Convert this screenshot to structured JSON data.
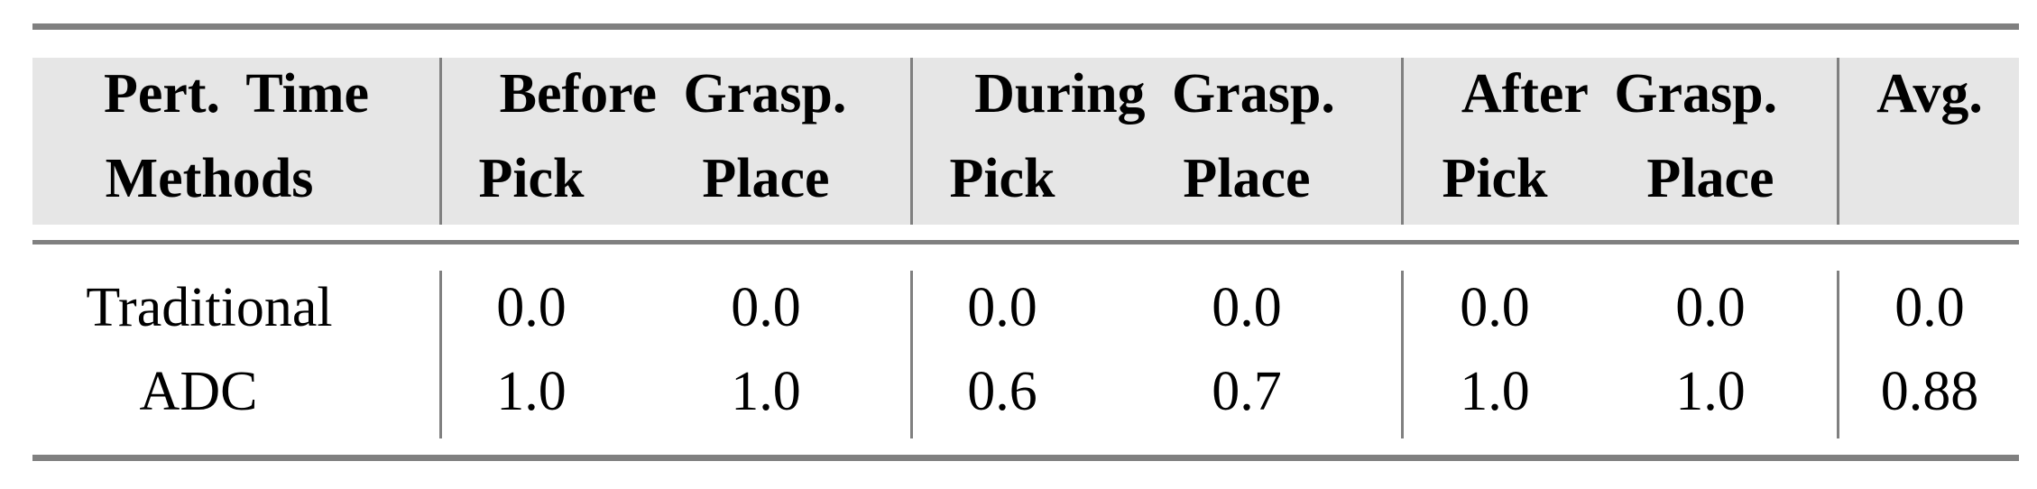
{
  "header": {
    "row1": {
      "first": "Pert. Time",
      "groups": [
        "Before Grasp.",
        "During Grasp.",
        "After Grasp."
      ],
      "last": "Avg."
    },
    "row2": {
      "first": "Methods",
      "subs": [
        "Pick",
        "Place",
        "Pick",
        "Place",
        "Pick",
        "Place"
      ],
      "last": ""
    }
  },
  "rows": [
    {
      "method": "Traditional",
      "values": [
        "0.0",
        "0.0",
        "0.0",
        "0.0",
        "0.0",
        "0.0"
      ],
      "avg": "0.0"
    },
    {
      "method": "ADC",
      "values": [
        "1.0",
        "1.0",
        "0.6",
        "0.7",
        "1.0",
        "1.0"
      ],
      "avg": "0.88"
    }
  ],
  "colors": {
    "header_bg": "#e6e6e6",
    "rules": "#808080"
  }
}
